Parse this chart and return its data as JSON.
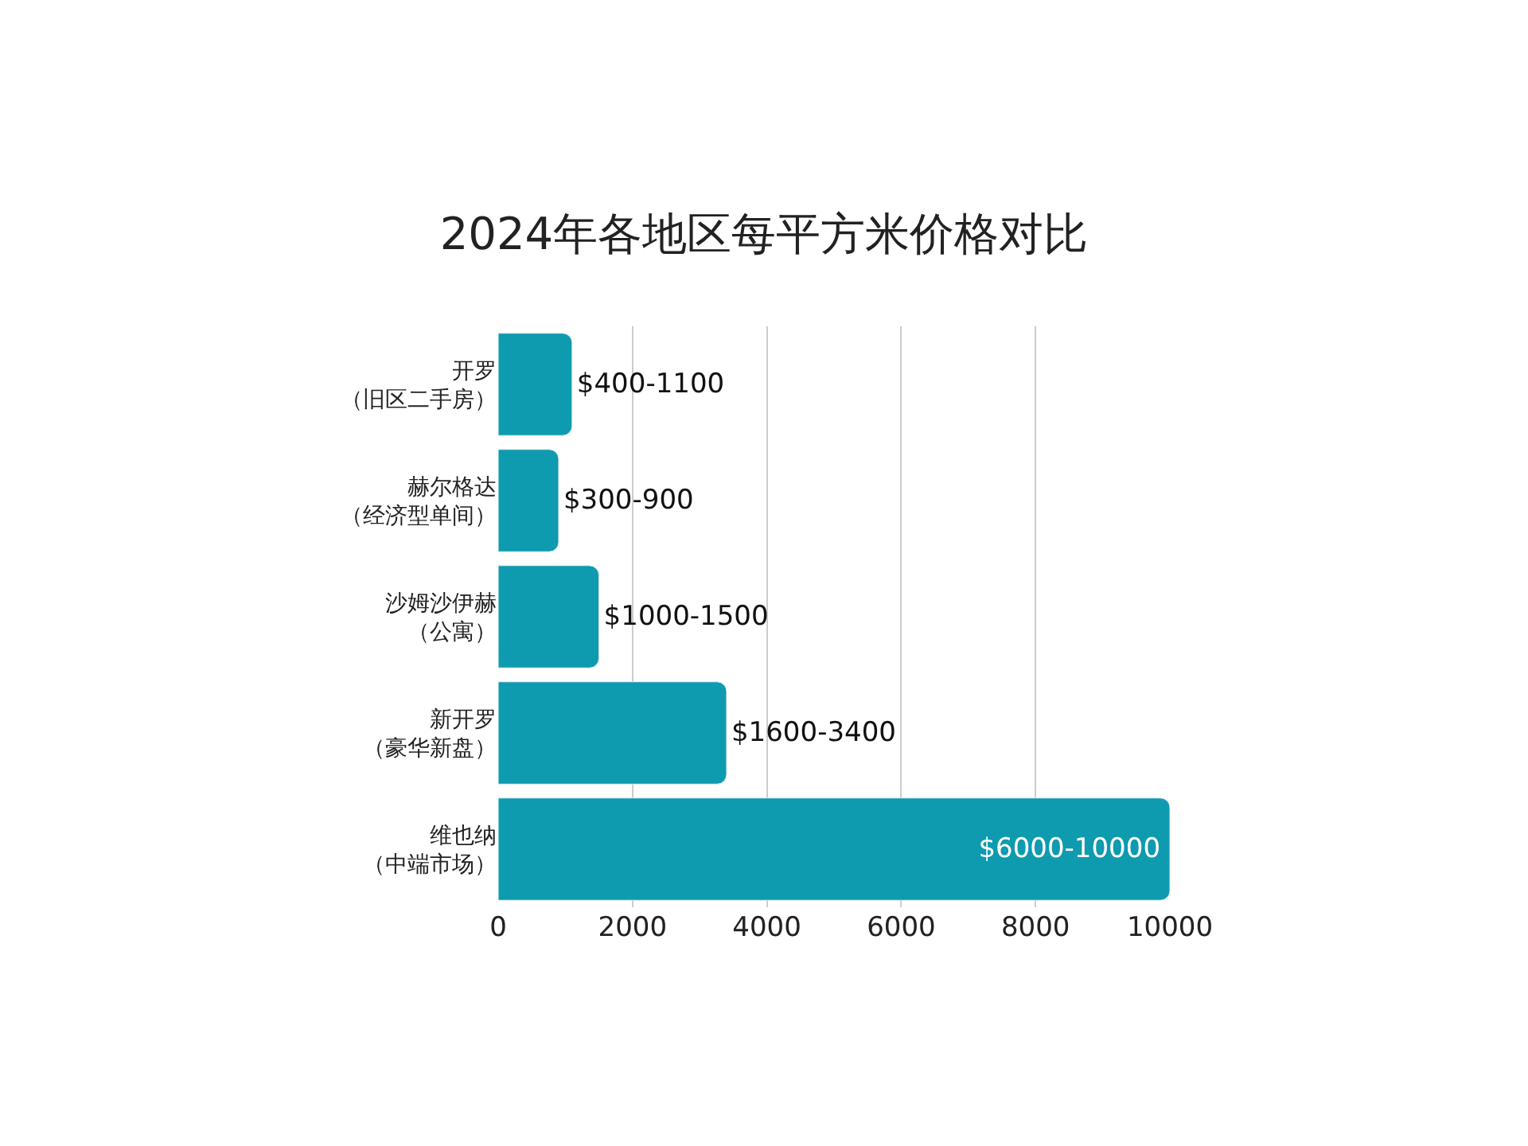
{
  "chart_data": {
    "type": "bar",
    "orientation": "horizontal",
    "title": "2024年各地区每平方米价格对比",
    "categories": [
      "开罗（旧区二手房）",
      "赫尔格达（经济型单间）",
      "沙姆沙伊赫（公寓）",
      "新开罗（豪华新盘）",
      "维也纳（中端市场）"
    ],
    "values": [
      1100,
      900,
      1500,
      3400,
      10000
    ],
    "value_labels": [
      "$400-1100",
      "$300-900",
      "$1000-1500",
      "$1600-3400",
      "$6000-10000"
    ],
    "color": "#0e9aaf",
    "xlim": [
      0,
      10000
    ],
    "xticks": [
      0,
      2000,
      4000,
      6000,
      8000,
      10000
    ],
    "grid": "x"
  }
}
